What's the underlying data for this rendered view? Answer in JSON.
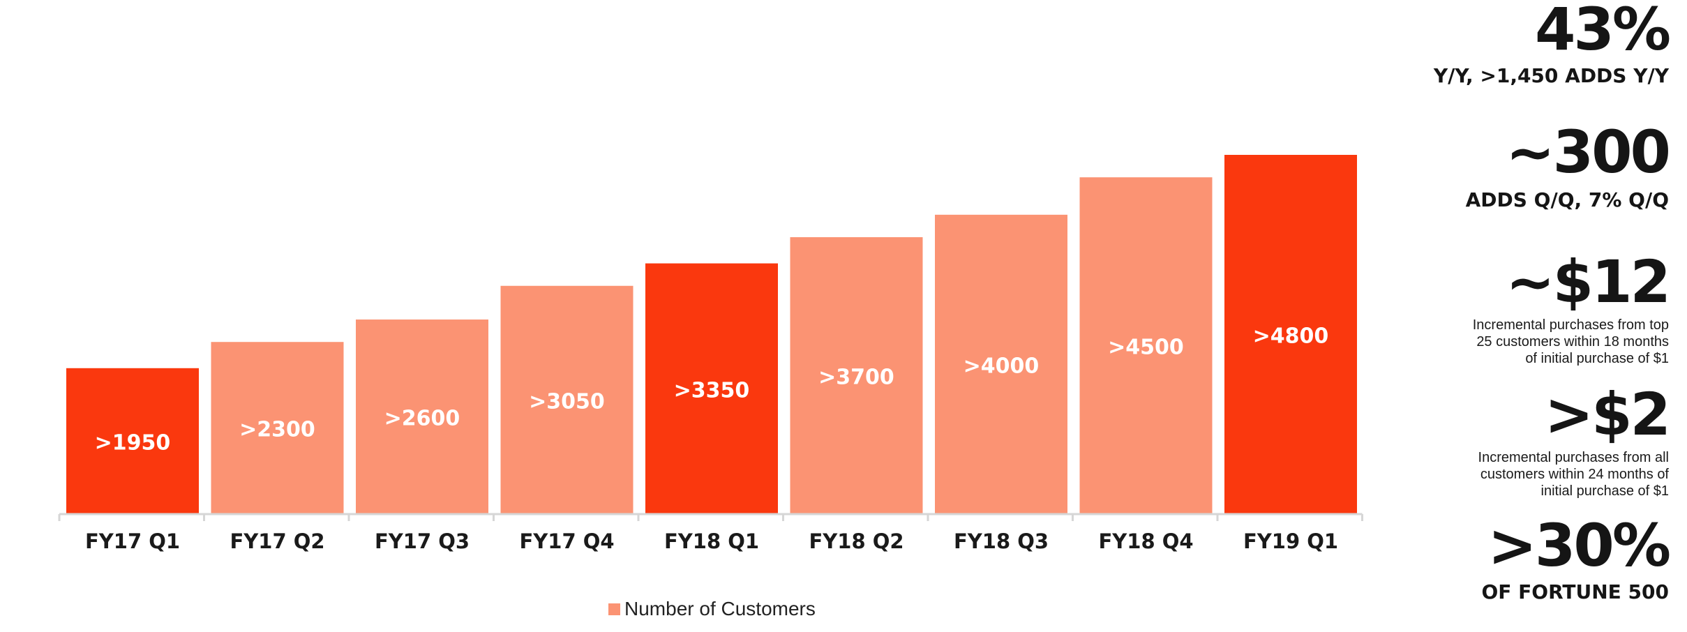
{
  "chart_data": {
    "type": "bar",
    "categories": [
      "FY17 Q1",
      "FY17 Q2",
      "FY17 Q3",
      "FY17 Q4",
      "FY18 Q1",
      "FY18 Q2",
      "FY18 Q3",
      "FY18 Q4",
      "FY19 Q1"
    ],
    "values": [
      1950,
      2300,
      2600,
      3050,
      3350,
      3700,
      4000,
      4500,
      4800
    ],
    "data_labels": [
      ">1950",
      ">2300",
      ">2600",
      ">3050",
      ">3350",
      ">3700",
      ">4000",
      ">4500",
      ">4800"
    ],
    "series": [
      {
        "name": "Number of Customers",
        "values": [
          1950,
          2300,
          2600,
          3050,
          3350,
          3700,
          4000,
          4500,
          4800
        ]
      }
    ],
    "highlighted": [
      "FY17 Q1",
      "FY18 Q1",
      "FY19 Q1"
    ],
    "colors": {
      "default": "#fb9373",
      "highlight": "#fa380e",
      "axis": "#d6d6d6"
    },
    "ylim": [
      0,
      5000
    ],
    "legend": "bottom-center",
    "grid": false,
    "title": "",
    "xlabel": "",
    "ylabel": ""
  },
  "legend": {
    "label": "Number of Customers"
  },
  "stats": [
    {
      "value": "43%",
      "caption": "Y/Y, >1,450 ADDS Y/Y"
    },
    {
      "value": "~300",
      "caption": "ADDS Q/Q, 7% Q/Q"
    },
    {
      "value": "~$12",
      "note": "Incremental purchases from top\n25 customers within 18 months\nof initial purchase of $1"
    },
    {
      "value": ">$2",
      "note": "Incremental purchases from all\ncustomers within 24 months of\ninitial purchase of $1"
    },
    {
      "value": ">30%",
      "caption": "OF FORTUNE 500"
    }
  ]
}
